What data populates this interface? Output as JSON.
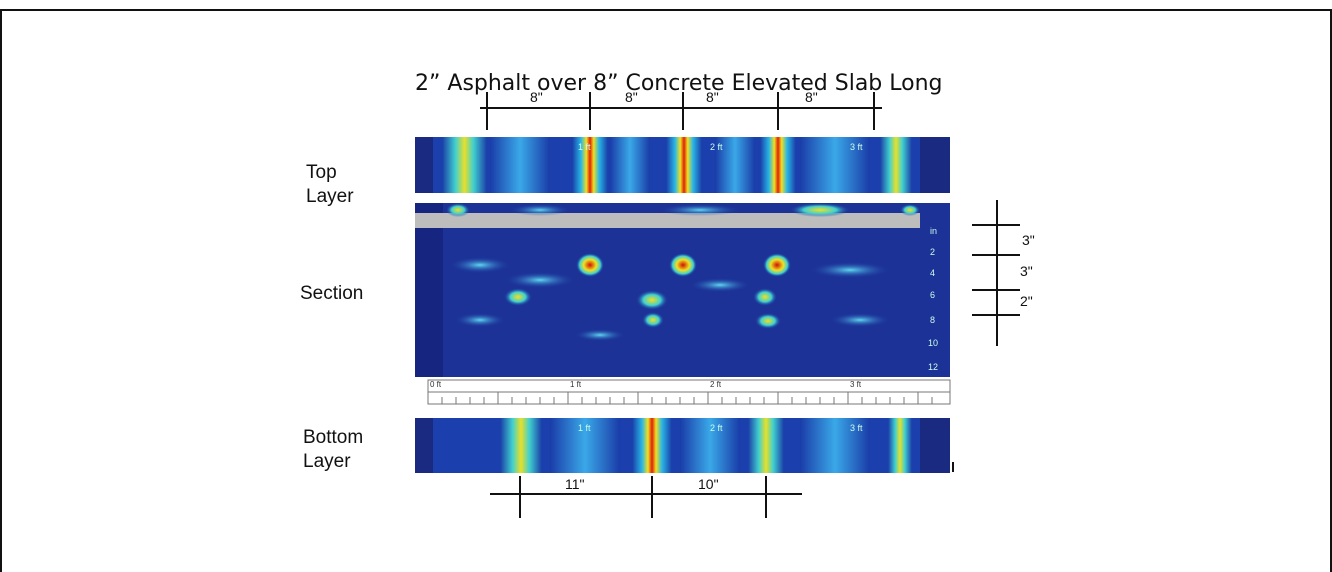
{
  "title": "2” Asphalt over 8” Concrete Elevated Slab Long",
  "layer_labels": {
    "top": "Top Layer",
    "section": "Section",
    "bottom": "Bottom Layer"
  },
  "top_spacing_labels": [
    "8\"",
    "8\"",
    "8\"",
    "8\""
  ],
  "depth_spacing_labels": [
    "3\"",
    "3\"",
    "2\""
  ],
  "bottom_spacing_labels": [
    "11\"",
    "10\""
  ],
  "strip_ticks": [
    "1 ft",
    "2 ft",
    "3 ft"
  ],
  "ruler_ticks": [
    "0 ft",
    "1 ft",
    "2 ft",
    "3 ft"
  ],
  "depth_scale": [
    "in",
    "2",
    "4",
    "6",
    "8",
    "10",
    "12"
  ]
}
